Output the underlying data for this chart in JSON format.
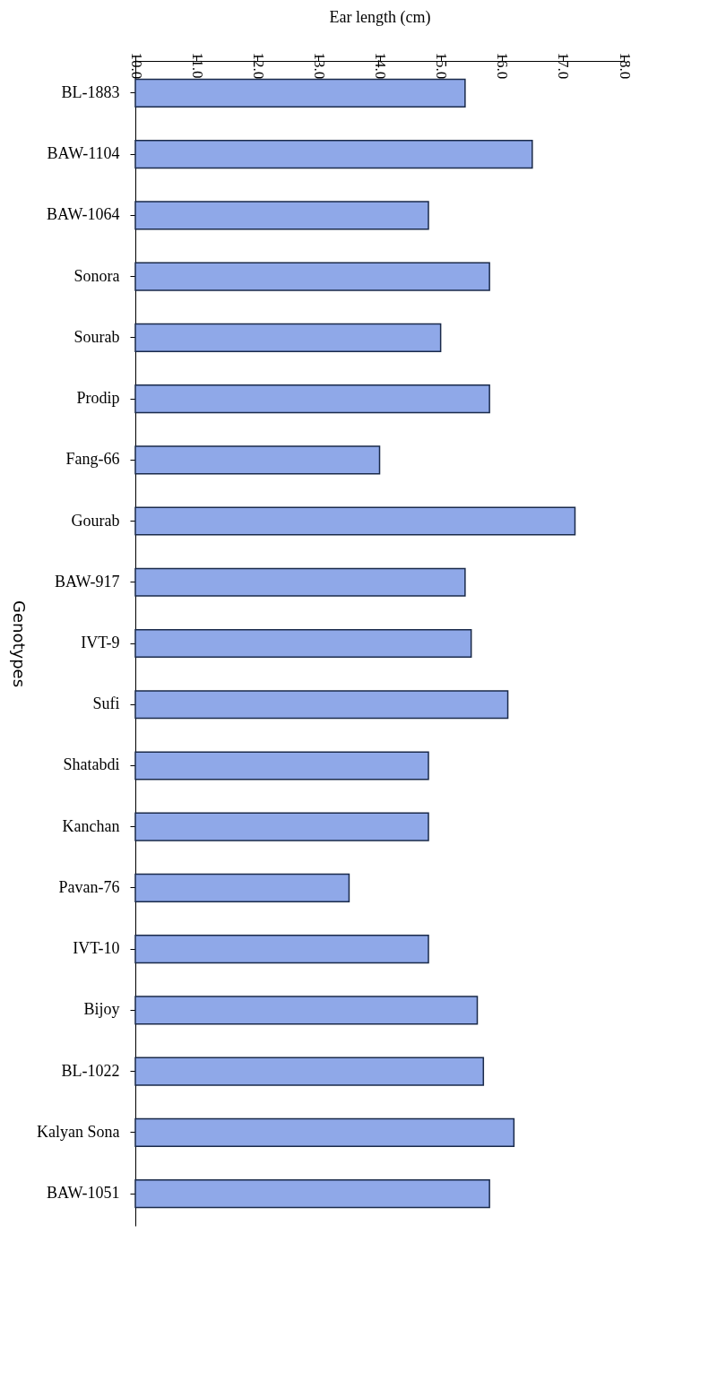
{
  "chart_data": {
    "type": "bar",
    "orientation": "horizontal",
    "xlabel": "Ear length (cm)",
    "ylabel": "Genotypes",
    "categories": [
      "BL-1883",
      "BAW-1104",
      "BAW-1064",
      "Sonora",
      "Sourab",
      "Prodip",
      "Fang-66",
      "Gourab",
      "BAW-917",
      "IVT-9",
      "Sufi",
      "Shatabdi",
      "Kanchan",
      "Pavan-76",
      "IVT-10",
      "Bijoy",
      "BL-1022",
      "Kalyan Sona",
      "BAW-1051"
    ],
    "values": [
      15.4,
      16.5,
      14.8,
      15.8,
      15.0,
      15.8,
      14.0,
      17.2,
      15.4,
      15.5,
      16.1,
      14.8,
      14.8,
      13.5,
      14.8,
      15.6,
      15.7,
      16.2,
      15.8
    ],
    "color": "#8fa8e8",
    "xlim": [
      10,
      18
    ],
    "xticks": [
      {
        "value": 10,
        "label": "10.0"
      },
      {
        "value": 11,
        "label": "11.0"
      },
      {
        "value": 12,
        "label": "12.0"
      },
      {
        "value": 13,
        "label": "13.0"
      },
      {
        "value": 14,
        "label": "14.0"
      },
      {
        "value": 15,
        "label": "15.0"
      },
      {
        "value": 16,
        "label": "16.0"
      },
      {
        "value": 17,
        "label": "17.0"
      },
      {
        "value": 18,
        "label": "18.0"
      }
    ],
    "grid": false
  }
}
